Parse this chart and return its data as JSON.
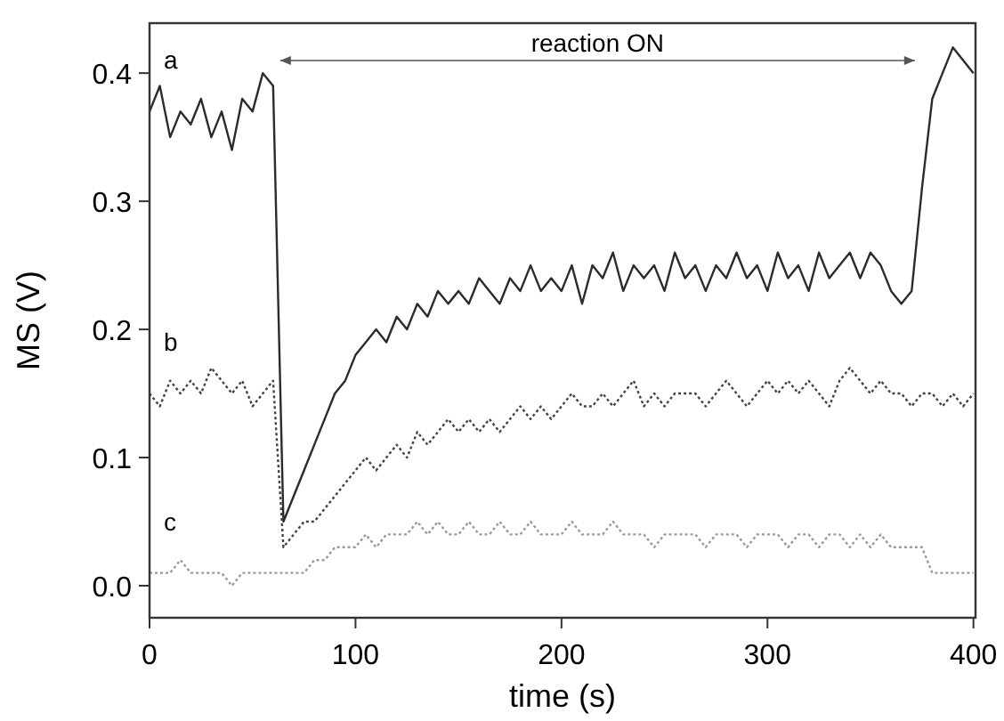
{
  "chart_data": {
    "type": "line",
    "xlabel": "time (s)",
    "ylabel": "MS (V)",
    "x": [
      0,
      5,
      10,
      15,
      20,
      25,
      30,
      35,
      40,
      45,
      50,
      55,
      60,
      65,
      70,
      75,
      80,
      85,
      90,
      95,
      100,
      105,
      110,
      115,
      120,
      125,
      130,
      135,
      140,
      145,
      150,
      155,
      160,
      165,
      170,
      175,
      180,
      185,
      190,
      195,
      200,
      205,
      210,
      215,
      220,
      225,
      230,
      235,
      240,
      245,
      250,
      255,
      260,
      265,
      270,
      275,
      280,
      285,
      290,
      295,
      300,
      305,
      310,
      315,
      320,
      325,
      330,
      335,
      340,
      345,
      350,
      355,
      360,
      365,
      370,
      375,
      380,
      385,
      390,
      395,
      400
    ],
    "series": [
      {
        "name": "a",
        "color": "#2b2b2b",
        "line_style": "solid",
        "values": [
          0.37,
          0.39,
          0.35,
          0.37,
          0.36,
          0.38,
          0.35,
          0.37,
          0.34,
          0.38,
          0.37,
          0.4,
          0.39,
          0.05,
          0.07,
          0.09,
          0.11,
          0.13,
          0.15,
          0.16,
          0.18,
          0.19,
          0.2,
          0.19,
          0.21,
          0.2,
          0.22,
          0.21,
          0.23,
          0.22,
          0.23,
          0.22,
          0.24,
          0.23,
          0.22,
          0.24,
          0.23,
          0.25,
          0.23,
          0.24,
          0.23,
          0.25,
          0.22,
          0.25,
          0.24,
          0.26,
          0.23,
          0.25,
          0.24,
          0.25,
          0.23,
          0.26,
          0.24,
          0.25,
          0.23,
          0.25,
          0.24,
          0.26,
          0.24,
          0.25,
          0.23,
          0.26,
          0.24,
          0.25,
          0.23,
          0.26,
          0.24,
          0.25,
          0.26,
          0.24,
          0.26,
          0.25,
          0.23,
          0.22,
          0.23,
          0.31,
          0.38,
          0.4,
          0.42,
          0.41,
          0.4
        ]
      },
      {
        "name": "b",
        "color": "#444444",
        "line_style": "dotted",
        "values": [
          0.15,
          0.14,
          0.16,
          0.15,
          0.16,
          0.15,
          0.17,
          0.16,
          0.15,
          0.16,
          0.14,
          0.15,
          0.16,
          0.03,
          0.04,
          0.05,
          0.05,
          0.06,
          0.07,
          0.08,
          0.09,
          0.1,
          0.09,
          0.1,
          0.11,
          0.1,
          0.12,
          0.11,
          0.12,
          0.13,
          0.12,
          0.13,
          0.12,
          0.13,
          0.12,
          0.13,
          0.14,
          0.13,
          0.14,
          0.13,
          0.14,
          0.15,
          0.14,
          0.14,
          0.15,
          0.14,
          0.15,
          0.16,
          0.14,
          0.15,
          0.14,
          0.15,
          0.15,
          0.15,
          0.14,
          0.15,
          0.16,
          0.15,
          0.14,
          0.15,
          0.16,
          0.15,
          0.16,
          0.15,
          0.16,
          0.15,
          0.14,
          0.16,
          0.17,
          0.16,
          0.15,
          0.16,
          0.15,
          0.15,
          0.14,
          0.15,
          0.15,
          0.14,
          0.15,
          0.14,
          0.15
        ]
      },
      {
        "name": "c",
        "color": "#9a9a9a",
        "line_style": "dotted",
        "values": [
          0.01,
          0.01,
          0.01,
          0.02,
          0.01,
          0.01,
          0.01,
          0.01,
          0.0,
          0.01,
          0.01,
          0.01,
          0.01,
          0.01,
          0.01,
          0.01,
          0.02,
          0.02,
          0.03,
          0.03,
          0.03,
          0.04,
          0.03,
          0.04,
          0.04,
          0.04,
          0.05,
          0.04,
          0.05,
          0.04,
          0.04,
          0.05,
          0.04,
          0.04,
          0.05,
          0.04,
          0.04,
          0.05,
          0.04,
          0.04,
          0.04,
          0.05,
          0.04,
          0.04,
          0.04,
          0.05,
          0.04,
          0.04,
          0.04,
          0.03,
          0.04,
          0.04,
          0.04,
          0.04,
          0.03,
          0.04,
          0.04,
          0.04,
          0.03,
          0.04,
          0.04,
          0.04,
          0.03,
          0.04,
          0.04,
          0.03,
          0.04,
          0.04,
          0.03,
          0.04,
          0.03,
          0.04,
          0.03,
          0.03,
          0.03,
          0.03,
          0.01,
          0.01,
          0.01,
          0.01,
          0.01
        ]
      }
    ],
    "annotations": [
      "reaction ON"
    ],
    "xlim": [
      0,
      401
    ],
    "ylim": [
      -0.025,
      0.439
    ],
    "xticks": [
      0,
      100,
      200,
      300,
      400
    ],
    "yticks": [
      {
        "value": 0,
        "label": "0.0"
      },
      0.1,
      0.2,
      0.3,
      0.4
    ],
    "grid": false,
    "marker": "none"
  }
}
